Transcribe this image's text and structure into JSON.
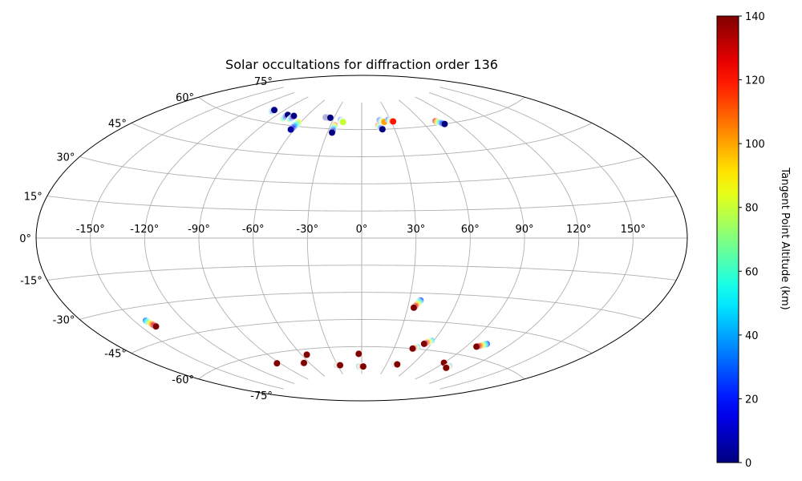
{
  "chart_data": {
    "type": "scatter",
    "projection": "aitoff",
    "title": "Solar occultations for diffraction order 136",
    "grid": true,
    "lon_ticks": [
      -150,
      -120,
      -90,
      -60,
      -30,
      0,
      30,
      60,
      90,
      120,
      150
    ],
    "lon_tick_labels": [
      "-150°",
      "-120°",
      "-90°",
      "-60°",
      "-30°",
      "0°",
      "30°",
      "60°",
      "90°",
      "120°",
      "150°"
    ],
    "lat_ticks": [
      -75,
      -60,
      -45,
      -30,
      -15,
      0,
      15,
      30,
      45,
      60,
      75
    ],
    "lat_tick_labels": [
      "-75°",
      "-60°",
      "-45°",
      "-30°",
      "-15°",
      "0°",
      "15°",
      "30°",
      "45°",
      "60°",
      "75°"
    ],
    "colorbar": {
      "label": "Tangent Point Altitude (km)",
      "colormap": "jet",
      "range": [
        0,
        140
      ],
      "ticks": [
        0,
        20,
        40,
        60,
        80,
        100,
        120,
        140
      ],
      "tick_labels": [
        "0",
        "20",
        "40",
        "60",
        "80",
        "100",
        "120",
        "140"
      ]
    },
    "tracks": [
      {
        "lon_start": -100,
        "lat_start": 65,
        "lon_end": -100,
        "lat_end": 66,
        "alt_start": 70,
        "alt_end": 0
      },
      {
        "lon_start": -80,
        "lat_start": 63,
        "lon_end": -80,
        "lat_end": 65,
        "alt_start": 80,
        "alt_end": 0
      },
      {
        "lon_start": -73,
        "lat_start": 63,
        "lon_end": -73,
        "lat_end": 65,
        "alt_start": 80,
        "alt_end": 0
      },
      {
        "lon_start": -62,
        "lat_start": 62,
        "lon_end": -63,
        "lat_end": 58,
        "alt_start": 90,
        "alt_end": 5
      },
      {
        "lon_start": -39,
        "lat_start": 66,
        "lon_end": -34,
        "lat_end": 66,
        "alt_start": 0,
        "alt_end": 0
      },
      {
        "lon_start": -26,
        "lat_start": 62,
        "lon_end": -26,
        "lat_end": 58,
        "alt_start": 110,
        "alt_end": 0
      },
      {
        "lon_start": -22,
        "lat_start": 65,
        "lon_end": -19,
        "lat_end": 64,
        "alt_start": 0,
        "alt_end": 80
      },
      {
        "lon_start": 16,
        "lat_start": 62,
        "lon_end": 19,
        "lat_end": 60,
        "alt_start": 120,
        "alt_end": 0
      },
      {
        "lon_start": 19,
        "lat_start": 65,
        "lon_end": 23,
        "lat_end": 64,
        "alt_start": 0,
        "alt_end": 100
      },
      {
        "lon_start": 28,
        "lat_start": 65,
        "lon_end": 32,
        "lat_end": 64,
        "alt_start": 0,
        "alt_end": 120
      },
      {
        "lon_start": 73,
        "lat_start": 62,
        "lon_end": 78,
        "lat_end": 60,
        "alt_start": 130,
        "alt_end": 0
      },
      {
        "lon_start": -143,
        "lat_start": -36,
        "lon_end": -141,
        "lat_end": -39,
        "alt_start": 30,
        "alt_end": 140
      },
      {
        "lon_start": 37,
        "lat_start": -34,
        "lon_end": 34,
        "lat_end": -38,
        "alt_start": 20,
        "alt_end": 140
      },
      {
        "lon_start": 58,
        "lat_start": -55,
        "lon_end": 54,
        "lat_end": -57,
        "alt_start": 40,
        "alt_end": 140
      },
      {
        "lon_start": 50,
        "lat_start": -59,
        "lon_end": 47,
        "lat_end": -60,
        "alt_start": 30,
        "alt_end": 140
      },
      {
        "lon_start": 103,
        "lat_start": -53,
        "lon_end": 98,
        "lat_end": -55,
        "alt_start": 20,
        "alt_end": 140
      },
      {
        "lon_start": -93,
        "lat_start": -65,
        "lon_end": -93,
        "lat_end": -65,
        "alt_start": 140,
        "alt_end": 140
      },
      {
        "lon_start": -67,
        "lat_start": -67,
        "lon_end": -66,
        "lat_end": -67,
        "alt_start": 140,
        "alt_end": 140
      },
      {
        "lon_start": -55,
        "lat_start": -63,
        "lon_end": -55,
        "lat_end": -63,
        "alt_start": 140,
        "alt_end": 140
      },
      {
        "lon_start": -31,
        "lat_start": -70,
        "lon_end": -27,
        "lat_end": -70,
        "alt_start": 30,
        "alt_end": 140
      },
      {
        "lon_start": -3,
        "lat_start": -64,
        "lon_end": -3,
        "lat_end": -64,
        "alt_start": 140,
        "alt_end": 140
      },
      {
        "lon_start": -3,
        "lat_start": -71,
        "lon_end": 2,
        "lat_end": -71,
        "alt_start": 20,
        "alt_end": 140
      },
      {
        "lon_start": 40,
        "lat_start": -69,
        "lon_end": 43,
        "lat_end": -69,
        "alt_start": 30,
        "alt_end": 140
      },
      {
        "lon_start": 92,
        "lat_start": -65,
        "lon_end": 90,
        "lat_end": -65,
        "alt_start": 20,
        "alt_end": 140
      },
      {
        "lon_start": 100,
        "lat_start": -66,
        "lon_end": 100,
        "lat_end": -67,
        "alt_start": 10,
        "alt_end": 140
      }
    ]
  }
}
